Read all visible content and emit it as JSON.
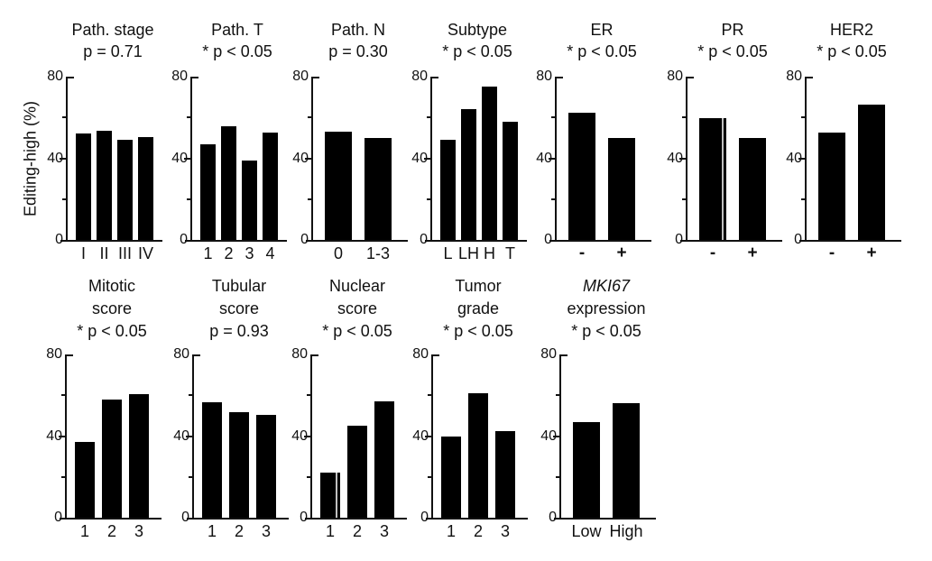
{
  "chart_data": {
    "type": "bar",
    "title": "",
    "ylabel": "Editing-high (%)",
    "xlabel": "",
    "ylim": [
      0,
      80
    ],
    "yticks": [
      0,
      40,
      80
    ],
    "yticks_minor": [
      20,
      60
    ],
    "grid": "off",
    "legend": "none",
    "bar_color": "#000000",
    "panels": [
      {
        "name": "path-stage",
        "row": 1,
        "title_lines": [
          "Path. stage"
        ],
        "p_label": "p = 0.71",
        "categories": [
          "I",
          "II",
          "III",
          "IV"
        ],
        "values": [
          52,
          53.5,
          49,
          50.5
        ]
      },
      {
        "name": "path-t",
        "row": 1,
        "title_lines": [
          "Path. T"
        ],
        "p_label": "* p < 0.05",
        "categories": [
          "1",
          "2",
          "3",
          "4"
        ],
        "values": [
          47,
          55.5,
          39,
          52.5
        ]
      },
      {
        "name": "path-n",
        "row": 1,
        "title_lines": [
          "Path. N"
        ],
        "p_label": "p = 0.30",
        "categories": [
          "0",
          "1-3"
        ],
        "values": [
          53,
          50
        ]
      },
      {
        "name": "subtype",
        "row": 1,
        "title_lines": [
          "Subtype"
        ],
        "p_label": "* p < 0.05",
        "categories": [
          "L",
          "LH",
          "H",
          "T"
        ],
        "values": [
          49,
          64,
          75,
          58
        ]
      },
      {
        "name": "er",
        "row": 1,
        "title_lines": [
          "ER"
        ],
        "p_label": "* p < 0.05",
        "categories": [
          "-",
          "+"
        ],
        "values": [
          62.5,
          50
        ]
      },
      {
        "name": "pr",
        "row": 1,
        "title_lines": [
          "PR"
        ],
        "p_label": "* p < 0.05",
        "categories": [
          "-",
          "+"
        ],
        "values": [
          59.5,
          50
        ],
        "bar_seam_index": 0
      },
      {
        "name": "her2",
        "row": 1,
        "title_lines": [
          "HER2"
        ],
        "p_label": "* p < 0.05",
        "categories": [
          "-",
          "+"
        ],
        "values": [
          52.5,
          66.5
        ]
      },
      {
        "name": "mitotic-score",
        "row": 2,
        "title_lines": [
          "Mitotic",
          "score"
        ],
        "p_label": "* p < 0.05",
        "categories": [
          "1",
          "2",
          "3"
        ],
        "values": [
          37,
          58,
          60.5
        ]
      },
      {
        "name": "tubular-score",
        "row": 2,
        "title_lines": [
          "Tubular",
          "score"
        ],
        "p_label": "p = 0.93",
        "categories": [
          "1",
          "2",
          "3"
        ],
        "values": [
          56.5,
          51.5,
          50.5
        ]
      },
      {
        "name": "nuclear-score",
        "row": 2,
        "title_lines": [
          "Nuclear",
          "score"
        ],
        "p_label": "* p < 0.05",
        "categories": [
          "1",
          "2",
          "3"
        ],
        "values": [
          22,
          45,
          57
        ],
        "bar_seam_index": 0
      },
      {
        "name": "tumor-grade",
        "row": 2,
        "title_lines": [
          "Tumor",
          "grade"
        ],
        "p_label": "* p < 0.05",
        "categories": [
          "1",
          "2",
          "3"
        ],
        "values": [
          40,
          61,
          42.5
        ]
      },
      {
        "name": "mki67-expression",
        "row": 2,
        "title_lines": [
          "MKI67",
          "expression"
        ],
        "p_label": "* p < 0.05",
        "categories": [
          "Low",
          "High"
        ],
        "values": [
          47,
          56
        ],
        "italic_title_line": 0
      }
    ]
  }
}
